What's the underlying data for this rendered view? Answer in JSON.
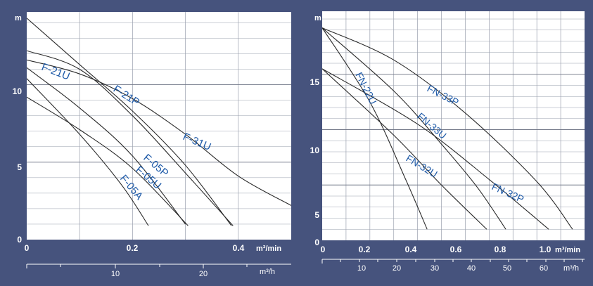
{
  "colors": {
    "background": "#46537d",
    "plot": "#ffffff",
    "grid": "#9aa0ae",
    "curve": "#2a2a2a",
    "label": "#1e5aa8",
    "text": "#ffffff"
  },
  "chart_data": [
    {
      "type": "line",
      "y_unit": "m",
      "x_unit": "m³/min",
      "x2_unit": "m³/h",
      "xlim": [
        0,
        0.5
      ],
      "ylim": [
        0,
        14.7
      ],
      "x_ticks": [
        "0",
        "0.2",
        "0.4"
      ],
      "y_ticks": [
        "0",
        "5",
        "10"
      ],
      "x2_ticks": [
        "10",
        "20"
      ],
      "grid": true,
      "series": [
        {
          "name": "F-21U",
          "points": [
            [
              0,
              12.2
            ],
            [
              0.1,
              11.0
            ],
            [
              0.2,
              8.0
            ],
            [
              0.3,
              4.3
            ],
            [
              0.39,
              0.9
            ]
          ]
        },
        {
          "name": "F-21P",
          "points": [
            [
              0,
              14.3
            ],
            [
              0.1,
              11.3
            ],
            [
              0.2,
              8.3
            ],
            [
              0.3,
              4.8
            ],
            [
              0.387,
              0.9
            ]
          ]
        },
        {
          "name": "F-31U",
          "points": [
            [
              0,
              11.6
            ],
            [
              0.1,
              10.7
            ],
            [
              0.2,
              9.1
            ],
            [
              0.3,
              6.8
            ],
            [
              0.4,
              4.1
            ],
            [
              0.5,
              2.2
            ]
          ]
        },
        {
          "name": "F-05P",
          "points": [
            [
              0,
              11.1
            ],
            [
              0.1,
              8.5
            ],
            [
              0.2,
              5.4
            ],
            [
              0.3,
              1.0
            ]
          ]
        },
        {
          "name": "F-05U",
          "points": [
            [
              0,
              9.2
            ],
            [
              0.1,
              7.1
            ],
            [
              0.2,
              4.6
            ],
            [
              0.305,
              0.9
            ]
          ]
        },
        {
          "name": "F-05A",
          "points": [
            [
              0,
              10.4
            ],
            [
              0.1,
              6.8
            ],
            [
              0.18,
              3.5
            ],
            [
              0.23,
              0.9
            ]
          ]
        }
      ]
    },
    {
      "type": "line",
      "y_unit": "m",
      "x_unit": "m³/min",
      "x2_unit": "m³/h",
      "xlim": [
        0,
        1.1
      ],
      "ylim": [
        0,
        20.7
      ],
      "x_ticks": [
        "0",
        "0.2",
        "0.4",
        "0.6",
        "0.8",
        "1.0"
      ],
      "y_ticks": [
        "0",
        "5",
        "10",
        "15"
      ],
      "x2_ticks": [
        "10",
        "20",
        "30",
        "40",
        "50",
        "60"
      ],
      "grid": true,
      "series": [
        {
          "name": "FN-22U",
          "points": [
            [
              0,
              19.2
            ],
            [
              0.2,
              12.5
            ],
            [
              0.35,
              5.5
            ],
            [
              0.44,
              1.0
            ]
          ]
        },
        {
          "name": "FN-33P",
          "points": [
            [
              0,
              19.2
            ],
            [
              0.3,
              16.3
            ],
            [
              0.6,
              11.5
            ],
            [
              0.9,
              5.3
            ],
            [
              1.05,
              1.0
            ]
          ]
        },
        {
          "name": "FN-33U",
          "points": [
            [
              0,
              19.2
            ],
            [
              0.3,
              13.5
            ],
            [
              0.5,
              8.7
            ],
            [
              0.65,
              4.8
            ],
            [
              0.77,
              1.0
            ]
          ]
        },
        {
          "name": "FN-32U",
          "points": [
            [
              0,
              15.5
            ],
            [
              0.3,
              9.5
            ],
            [
              0.5,
              5.0
            ],
            [
              0.69,
              1.0
            ]
          ]
        },
        {
          "name": "FN-32P",
          "points": [
            [
              0,
              15.5
            ],
            [
              0.4,
              10.5
            ],
            [
              0.7,
              5.5
            ],
            [
              0.95,
              1.0
            ]
          ]
        }
      ]
    }
  ]
}
